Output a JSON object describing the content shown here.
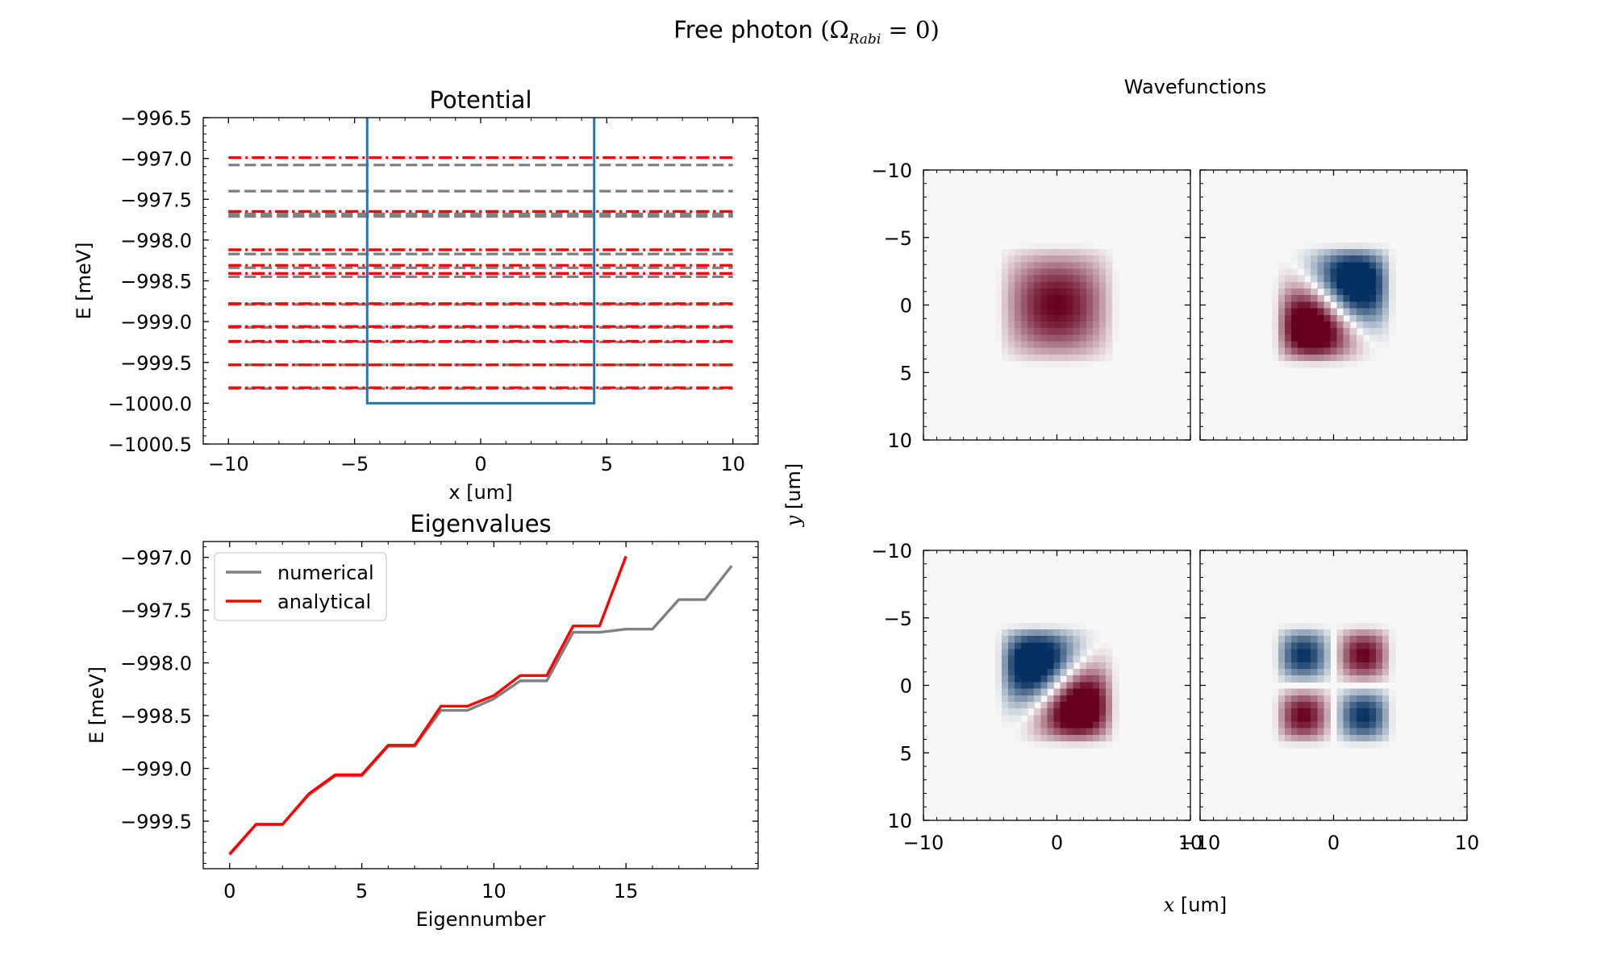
{
  "figure": {
    "title_text": "Free photon",
    "title_math": {
      "open": "(",
      "symbol": "Ω",
      "subscript": "Rabi",
      "relation": " = 0",
      "close": ")"
    }
  },
  "chart_data": [
    {
      "type": "line",
      "title": "Potential",
      "xlabel": "x [um]",
      "ylabel": "E [meV]",
      "xlim": [
        -11,
        11
      ],
      "ylim": [
        -1000.5,
        -996.5
      ],
      "xticks": [
        -10,
        -5,
        0,
        5,
        10
      ],
      "yticks": [
        -1000.5,
        -1000.0,
        -999.5,
        -999.0,
        -998.5,
        -998.0,
        -997.5,
        -997.0,
        -996.5
      ],
      "grid": false,
      "potential": {
        "x": [
          -4.5,
          -4.5,
          4.5,
          4.5
        ],
        "y": [
          -996.5,
          -1000.0,
          -1000.0,
          -996.5
        ],
        "color": "#1f77b4"
      },
      "numerical_levels": {
        "color": "#808080",
        "style": "dashed",
        "x_range": [
          -10,
          10
        ],
        "values": [
          -999.82,
          -999.53,
          -999.53,
          -999.25,
          -999.07,
          -999.07,
          -998.79,
          -998.79,
          -998.45,
          -998.45,
          -998.34,
          -998.17,
          -998.17,
          -997.71,
          -997.71,
          -997.68,
          -997.68,
          -997.4,
          -997.4,
          -997.08
        ]
      },
      "analytical_levels": {
        "color": "#ff0000",
        "style": "dashdot",
        "x_range": [
          -10,
          10
        ],
        "values": [
          -999.81,
          -999.53,
          -999.53,
          -999.24,
          -999.06,
          -999.06,
          -998.78,
          -998.78,
          -998.41,
          -998.41,
          -998.31,
          -998.12,
          -998.12,
          -997.65,
          -997.65,
          -996.99
        ]
      }
    },
    {
      "type": "line",
      "title": "Eigenvalues",
      "xlabel": "Eigennumber",
      "ylabel": "E [meV]",
      "xlim": [
        -1,
        20
      ],
      "ylim": [
        -999.95,
        -996.85
      ],
      "xticks": [
        0,
        5,
        10,
        15
      ],
      "yticks": [
        -999.5,
        -999.0,
        -998.5,
        -998.0,
        -997.5,
        -997.0
      ],
      "grid": false,
      "legend": "upper-left",
      "series": [
        {
          "name": "numerical",
          "color": "#808080",
          "x": [
            0,
            1,
            2,
            3,
            4,
            5,
            6,
            7,
            8,
            9,
            10,
            11,
            12,
            13,
            14,
            15,
            16,
            17,
            18,
            19
          ],
          "values": [
            -999.82,
            -999.53,
            -999.53,
            -999.25,
            -999.07,
            -999.07,
            -998.79,
            -998.79,
            -998.45,
            -998.45,
            -998.34,
            -998.17,
            -998.17,
            -997.71,
            -997.71,
            -997.68,
            -997.68,
            -997.4,
            -997.4,
            -997.08
          ]
        },
        {
          "name": "analytical",
          "color": "#ff0000",
          "x": [
            0,
            1,
            2,
            3,
            4,
            5,
            6,
            7,
            8,
            9,
            10,
            11,
            12,
            13,
            14,
            15
          ],
          "values": [
            -999.81,
            -999.53,
            -999.53,
            -999.24,
            -999.06,
            -999.06,
            -998.78,
            -998.78,
            -998.41,
            -998.41,
            -998.31,
            -998.12,
            -998.12,
            -997.65,
            -997.65,
            -996.99
          ]
        }
      ]
    },
    {
      "type": "heatmap",
      "title": "Wavefunctions",
      "xlabel": "x [um]",
      "ylabel": "y [um]",
      "xlim": [
        -10,
        10
      ],
      "ylim": [
        10,
        -10
      ],
      "xticks": [
        -10,
        0,
        10
      ],
      "yticks": [
        -10,
        -5,
        0,
        5,
        10
      ],
      "colormap": "RdBu_r",
      "positive_color": "#67001f",
      "negative_color": "#053061",
      "zero_color": "#f7f7f7",
      "well_half_width": 4.5,
      "grid_cells": 41,
      "panels": [
        {
          "mode": "ground"
        },
        {
          "mode": "diag-1",
          "sign": 1
        },
        {
          "mode": "diag-2",
          "sign": 1
        },
        {
          "mode": "quad",
          "sign": 1
        }
      ]
    }
  ]
}
